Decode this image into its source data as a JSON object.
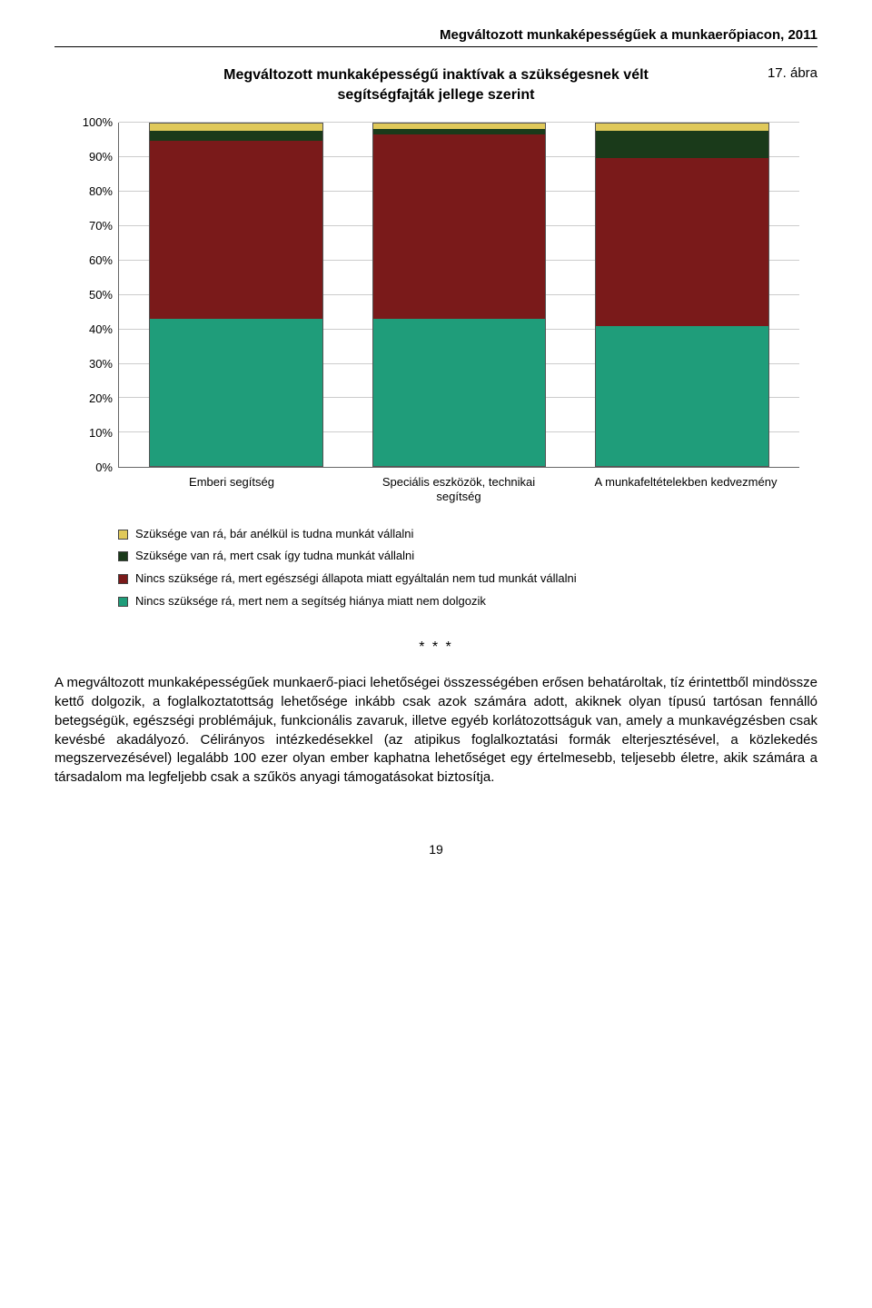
{
  "header": "Megváltozott munkaképességűek a munkaerőpiacon, 2011",
  "figure_label": "17. ábra",
  "chart": {
    "type": "stacked-bar",
    "title_line1": "Megváltozott munkaképességű inaktívak a szükségesnek vélt",
    "title_line2": "segítségfajták jellege szerint",
    "y_ticks": [
      "100%",
      "90%",
      "80%",
      "70%",
      "60%",
      "50%",
      "40%",
      "30%",
      "20%",
      "10%",
      "0%"
    ],
    "grid_positions_pct": [
      0,
      10,
      20,
      30,
      40,
      50,
      60,
      70,
      80,
      90,
      100
    ],
    "categories": [
      "Emberi segítség",
      "Speciális eszközök, technikai segítség",
      "A munkafeltételekben kedvezmény"
    ],
    "series": [
      {
        "name": "Szüksége van rá, bár anélkül is tudna munkát vállalni",
        "color": "#e0c95a"
      },
      {
        "name": "Szüksége van rá, mert csak így tudna munkát vállalni",
        "color": "#1a3a1a"
      },
      {
        "name": "Nincs szüksége rá, mert egészségi állapota miatt egyáltalán nem tud munkát vállalni",
        "color": "#7a1a1a"
      },
      {
        "name": "Nincs szüksége rá, mert nem a segítség hiánya miatt nem dolgozik",
        "color": "#1f9d7a"
      }
    ],
    "stacks": [
      [
        2,
        3,
        52,
        43
      ],
      [
        1.5,
        1.5,
        54,
        43
      ],
      [
        2,
        8,
        49,
        41
      ]
    ],
    "background_color": "#ffffff",
    "grid_color": "#cccccc",
    "axis_fontsize": 13,
    "title_fontsize": 16
  },
  "asterisks": "* * *",
  "paragraph": "A megváltozott munkaképességűek munkaerő-piaci lehetőségei összességében erősen behatároltak, tíz érintettből mindössze kettő dolgozik, a foglalkoztatottság lehetősége inkább csak azok számára adott, akiknek olyan típusú tartósan fennálló betegségük, egészségi problémájuk, funkcionális zavaruk, illetve egyéb korlátozottságuk van, amely a munkavégzésben csak kevésbé akadályozó. Célirányos intézkedésekkel (az atipikus foglalkoztatási formák elterjesztésével, a közlekedés megszervezésével) legalább 100 ezer olyan ember kaphatna lehetőséget egy értelmesebb, teljesebb életre, akik számára a társadalom ma legfeljebb csak a szűkös anyagi támogatásokat biztosítja.",
  "page_number": "19"
}
